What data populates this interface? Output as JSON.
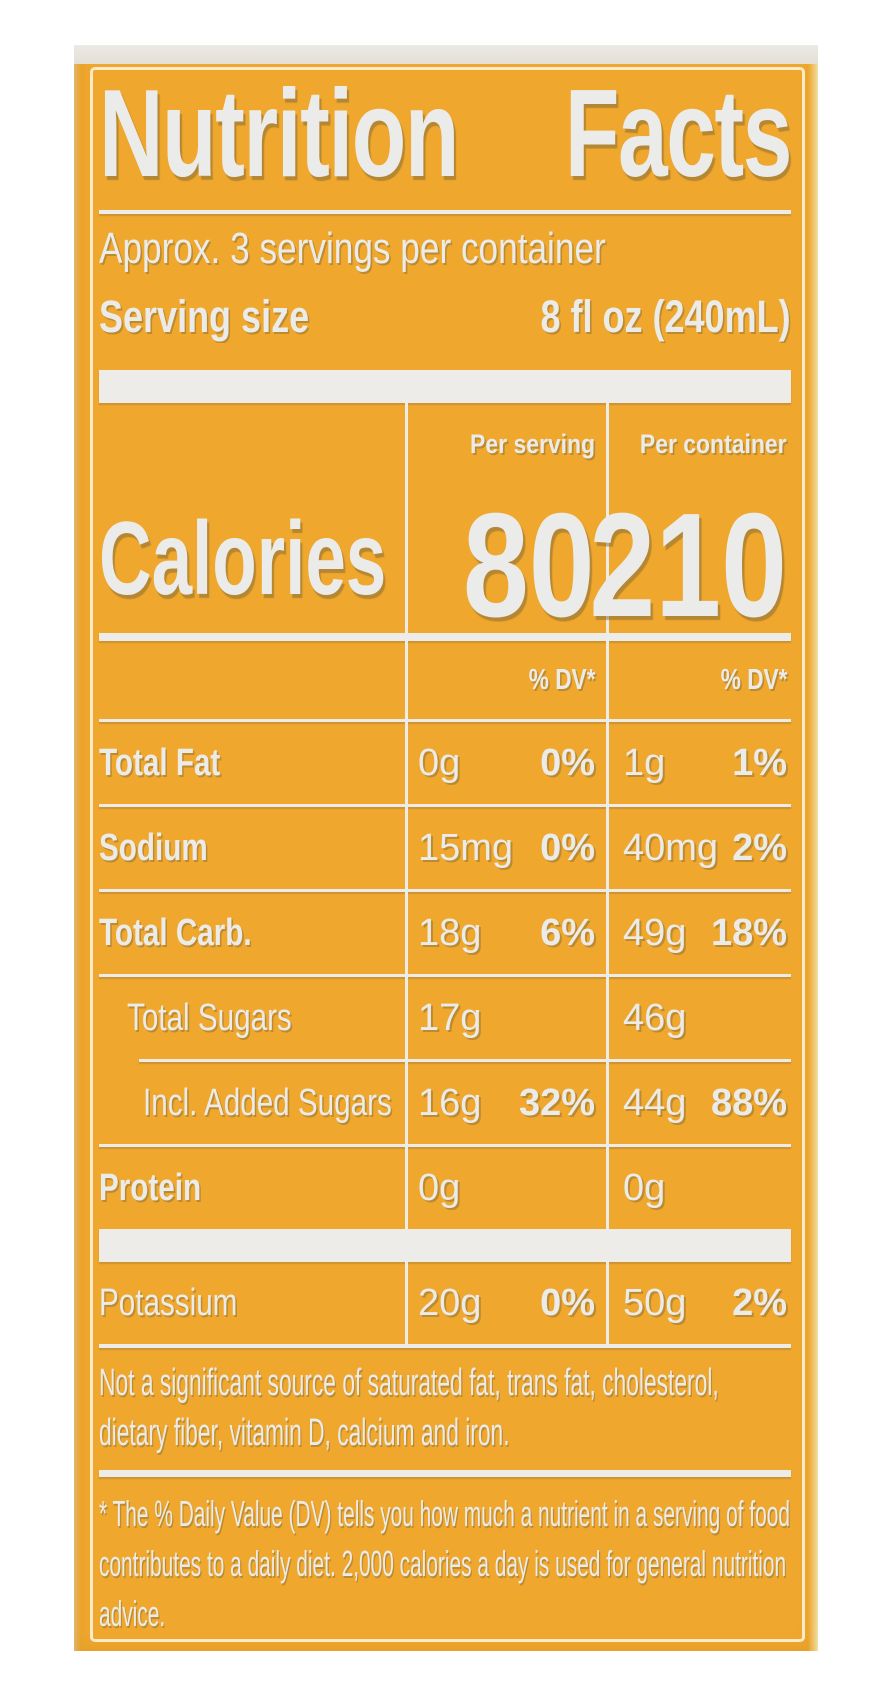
{
  "label": {
    "title": {
      "word1": "Nutrition",
      "word2": "Facts"
    },
    "servings_line": "Approx. 3 servings per container",
    "serving_size_label": "Serving size",
    "serving_size_value": "8 fl oz (240mL)",
    "calories": {
      "label": "Calories",
      "per_serving_header": "Per serving",
      "per_container_header": "Per container",
      "per_serving_value": "80",
      "per_container_value": "210"
    },
    "dv_header_serving": "% DV*",
    "dv_header_container": "% DV*",
    "table": {
      "rows": [
        {
          "name": "Total Fat",
          "bold": true,
          "indent": 0,
          "sep_above": "thin",
          "serving_amount": "0g",
          "serving_dv": "0%",
          "container_amount": "1g",
          "container_dv": "1%"
        },
        {
          "name": "Sodium",
          "bold": true,
          "indent": 0,
          "sep_above": "thin",
          "serving_amount": "15mg",
          "serving_dv": "0%",
          "container_amount": "40mg",
          "container_dv": "2%"
        },
        {
          "name": "Total Carb.",
          "bold": true,
          "indent": 0,
          "sep_above": "thin",
          "serving_amount": "18g",
          "serving_dv": "6%",
          "container_amount": "49g",
          "container_dv": "18%"
        },
        {
          "name": "Total Sugars",
          "bold": false,
          "indent": 1,
          "sep_above": "thin",
          "serving_amount": "17g",
          "serving_dv": "",
          "container_amount": "46g",
          "container_dv": ""
        },
        {
          "name": "Incl. Added Sugars",
          "bold": false,
          "indent": 2,
          "sep_above": "thin-indent",
          "serving_amount": "16g",
          "serving_dv": "32%",
          "container_amount": "44g",
          "container_dv": "88%"
        },
        {
          "name": "Protein",
          "bold": true,
          "indent": 0,
          "sep_above": "thin",
          "serving_amount": "0g",
          "serving_dv": "",
          "container_amount": "0g",
          "container_dv": ""
        },
        {
          "name": "Potassium",
          "bold": false,
          "indent": 0,
          "sep_above": "bar",
          "serving_amount": "20g",
          "serving_dv": "0%",
          "container_amount": "50g",
          "container_dv": "2%"
        }
      ]
    },
    "footnote_sources": "Not a significant source of saturated fat, trans fat, cholesterol, dietary fiber, vitamin D, calcium and iron.",
    "footnote_dv": "* The % Daily Value (DV) tells you how much a nutrient in a serving of food contributes to a daily diet. 2,000 calories a day is used for general nutrition advice.",
    "colors": {
      "label_orange": "#efa72d",
      "text_white": "#ebebe9"
    }
  }
}
